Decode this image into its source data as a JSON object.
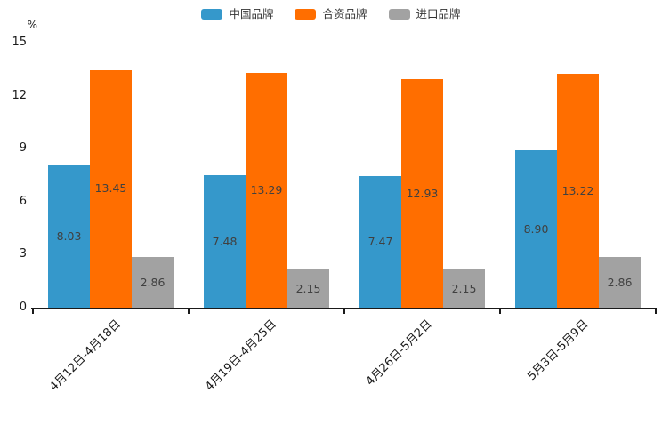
{
  "chart_data": {
    "type": "bar",
    "title": "",
    "xlabel": "",
    "ylabel": "%",
    "ylim": [
      0,
      15
    ],
    "yticks": [
      0,
      3,
      6,
      9,
      12,
      15
    ],
    "grid": false,
    "legend_position": "top",
    "categories": [
      "4月12日-4月18日",
      "4月19日-4月25日",
      "4月26日-5月2日",
      "5月3日-5月9日"
    ],
    "series": [
      {
        "name": "中国品牌",
        "color": "#3598cb",
        "values": [
          8.03,
          7.48,
          7.47,
          8.9
        ]
      },
      {
        "name": "合资品牌",
        "color": "#ff6e00",
        "values": [
          13.45,
          13.29,
          12.93,
          13.22
        ]
      },
      {
        "name": "进口品牌",
        "color": "#a2a2a2",
        "values": [
          2.86,
          2.15,
          2.15,
          2.86
        ]
      }
    ],
    "value_label_format": "2-decimals",
    "axis_color": "#1a1a1a"
  }
}
